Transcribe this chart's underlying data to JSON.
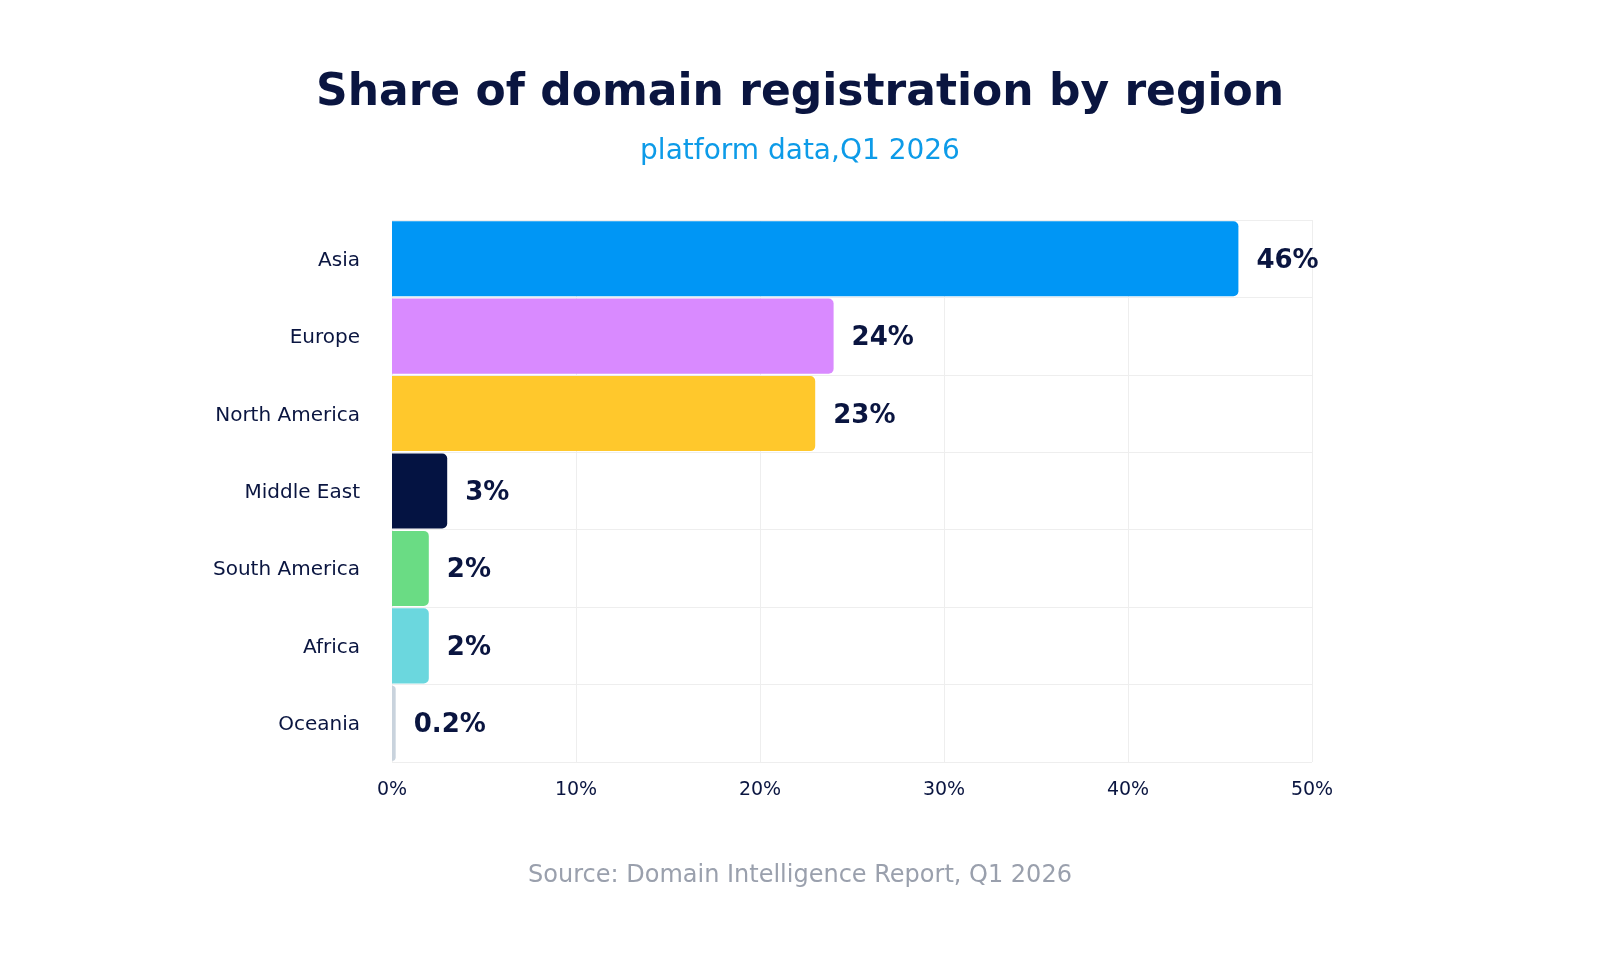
{
  "chart_data": {
    "type": "bar",
    "orientation": "horizontal",
    "title": "Share of domain registration by region",
    "subtitle": "platform data,Q1 2026",
    "categories": [
      "Asia",
      "Europe",
      "North America",
      "Middle East",
      "South America",
      "Africa",
      "Oceania"
    ],
    "values": [
      46,
      24,
      23,
      3,
      2,
      2,
      0.2
    ],
    "colors": [
      "#0096f5",
      "#d98aff",
      "#ffc82c",
      "#041342",
      "#6adc84",
      "#6bd7de",
      "#c9d3dd"
    ],
    "value_labels": [
      "46%",
      "24%",
      "23%",
      "3%",
      "2%",
      "2%",
      "0.2%"
    ],
    "xlim": [
      0,
      50
    ],
    "xticks": [
      {
        "value": 0,
        "label": "0%"
      },
      {
        "value": 10,
        "label": "10%"
      },
      {
        "value": 20,
        "label": "20%"
      },
      {
        "value": 30,
        "label": "30%"
      },
      {
        "value": 40,
        "label": "40%"
      },
      {
        "value": 50,
        "label": "50%"
      }
    ],
    "grid": true,
    "annotations": [
      "Source: Domain Intelligence Report, Q1 2026"
    ]
  }
}
